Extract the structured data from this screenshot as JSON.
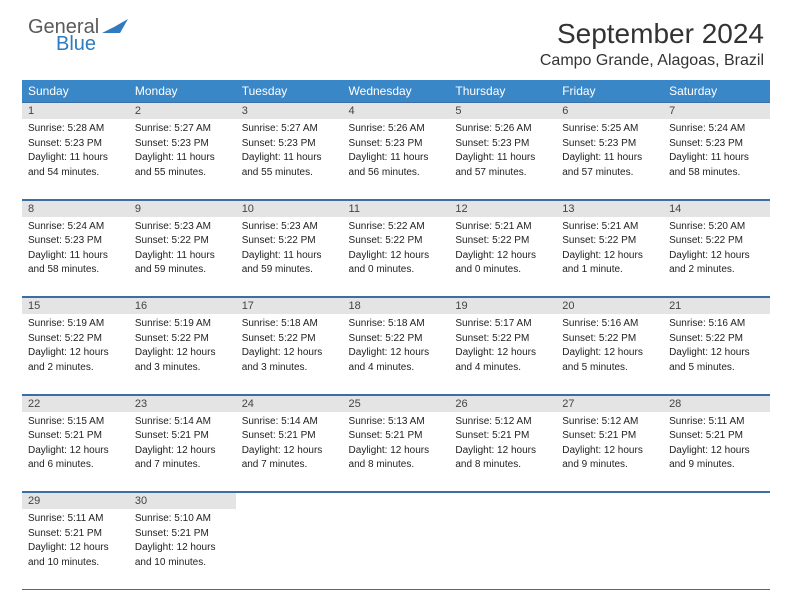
{
  "brand": {
    "general": "General",
    "blue": "Blue"
  },
  "title": "September 2024",
  "location": "Campo Grande, Alagoas, Brazil",
  "colors": {
    "header_bg": "#3a87c8",
    "header_text": "#ffffff",
    "daynum_bg": "#e4e4e4",
    "border": "#3a6ea5",
    "logo_blue": "#2f7bbf",
    "logo_gray": "#5a5a5a",
    "text": "#222222",
    "background": "#ffffff"
  },
  "typography": {
    "title_fontsize": 28,
    "location_fontsize": 16,
    "weekday_fontsize": 12,
    "daynum_fontsize": 11,
    "cell_fontsize": 10
  },
  "weekdays": [
    "Sunday",
    "Monday",
    "Tuesday",
    "Wednesday",
    "Thursday",
    "Friday",
    "Saturday"
  ],
  "days": [
    {
      "n": "1",
      "sunrise": "Sunrise: 5:28 AM",
      "sunset": "Sunset: 5:23 PM",
      "day1": "Daylight: 11 hours",
      "day2": "and 54 minutes."
    },
    {
      "n": "2",
      "sunrise": "Sunrise: 5:27 AM",
      "sunset": "Sunset: 5:23 PM",
      "day1": "Daylight: 11 hours",
      "day2": "and 55 minutes."
    },
    {
      "n": "3",
      "sunrise": "Sunrise: 5:27 AM",
      "sunset": "Sunset: 5:23 PM",
      "day1": "Daylight: 11 hours",
      "day2": "and 55 minutes."
    },
    {
      "n": "4",
      "sunrise": "Sunrise: 5:26 AM",
      "sunset": "Sunset: 5:23 PM",
      "day1": "Daylight: 11 hours",
      "day2": "and 56 minutes."
    },
    {
      "n": "5",
      "sunrise": "Sunrise: 5:26 AM",
      "sunset": "Sunset: 5:23 PM",
      "day1": "Daylight: 11 hours",
      "day2": "and 57 minutes."
    },
    {
      "n": "6",
      "sunrise": "Sunrise: 5:25 AM",
      "sunset": "Sunset: 5:23 PM",
      "day1": "Daylight: 11 hours",
      "day2": "and 57 minutes."
    },
    {
      "n": "7",
      "sunrise": "Sunrise: 5:24 AM",
      "sunset": "Sunset: 5:23 PM",
      "day1": "Daylight: 11 hours",
      "day2": "and 58 minutes."
    },
    {
      "n": "8",
      "sunrise": "Sunrise: 5:24 AM",
      "sunset": "Sunset: 5:23 PM",
      "day1": "Daylight: 11 hours",
      "day2": "and 58 minutes."
    },
    {
      "n": "9",
      "sunrise": "Sunrise: 5:23 AM",
      "sunset": "Sunset: 5:22 PM",
      "day1": "Daylight: 11 hours",
      "day2": "and 59 minutes."
    },
    {
      "n": "10",
      "sunrise": "Sunrise: 5:23 AM",
      "sunset": "Sunset: 5:22 PM",
      "day1": "Daylight: 11 hours",
      "day2": "and 59 minutes."
    },
    {
      "n": "11",
      "sunrise": "Sunrise: 5:22 AM",
      "sunset": "Sunset: 5:22 PM",
      "day1": "Daylight: 12 hours",
      "day2": "and 0 minutes."
    },
    {
      "n": "12",
      "sunrise": "Sunrise: 5:21 AM",
      "sunset": "Sunset: 5:22 PM",
      "day1": "Daylight: 12 hours",
      "day2": "and 0 minutes."
    },
    {
      "n": "13",
      "sunrise": "Sunrise: 5:21 AM",
      "sunset": "Sunset: 5:22 PM",
      "day1": "Daylight: 12 hours",
      "day2": "and 1 minute."
    },
    {
      "n": "14",
      "sunrise": "Sunrise: 5:20 AM",
      "sunset": "Sunset: 5:22 PM",
      "day1": "Daylight: 12 hours",
      "day2": "and 2 minutes."
    },
    {
      "n": "15",
      "sunrise": "Sunrise: 5:19 AM",
      "sunset": "Sunset: 5:22 PM",
      "day1": "Daylight: 12 hours",
      "day2": "and 2 minutes."
    },
    {
      "n": "16",
      "sunrise": "Sunrise: 5:19 AM",
      "sunset": "Sunset: 5:22 PM",
      "day1": "Daylight: 12 hours",
      "day2": "and 3 minutes."
    },
    {
      "n": "17",
      "sunrise": "Sunrise: 5:18 AM",
      "sunset": "Sunset: 5:22 PM",
      "day1": "Daylight: 12 hours",
      "day2": "and 3 minutes."
    },
    {
      "n": "18",
      "sunrise": "Sunrise: 5:18 AM",
      "sunset": "Sunset: 5:22 PM",
      "day1": "Daylight: 12 hours",
      "day2": "and 4 minutes."
    },
    {
      "n": "19",
      "sunrise": "Sunrise: 5:17 AM",
      "sunset": "Sunset: 5:22 PM",
      "day1": "Daylight: 12 hours",
      "day2": "and 4 minutes."
    },
    {
      "n": "20",
      "sunrise": "Sunrise: 5:16 AM",
      "sunset": "Sunset: 5:22 PM",
      "day1": "Daylight: 12 hours",
      "day2": "and 5 minutes."
    },
    {
      "n": "21",
      "sunrise": "Sunrise: 5:16 AM",
      "sunset": "Sunset: 5:22 PM",
      "day1": "Daylight: 12 hours",
      "day2": "and 5 minutes."
    },
    {
      "n": "22",
      "sunrise": "Sunrise: 5:15 AM",
      "sunset": "Sunset: 5:21 PM",
      "day1": "Daylight: 12 hours",
      "day2": "and 6 minutes."
    },
    {
      "n": "23",
      "sunrise": "Sunrise: 5:14 AM",
      "sunset": "Sunset: 5:21 PM",
      "day1": "Daylight: 12 hours",
      "day2": "and 7 minutes."
    },
    {
      "n": "24",
      "sunrise": "Sunrise: 5:14 AM",
      "sunset": "Sunset: 5:21 PM",
      "day1": "Daylight: 12 hours",
      "day2": "and 7 minutes."
    },
    {
      "n": "25",
      "sunrise": "Sunrise: 5:13 AM",
      "sunset": "Sunset: 5:21 PM",
      "day1": "Daylight: 12 hours",
      "day2": "and 8 minutes."
    },
    {
      "n": "26",
      "sunrise": "Sunrise: 5:12 AM",
      "sunset": "Sunset: 5:21 PM",
      "day1": "Daylight: 12 hours",
      "day2": "and 8 minutes."
    },
    {
      "n": "27",
      "sunrise": "Sunrise: 5:12 AM",
      "sunset": "Sunset: 5:21 PM",
      "day1": "Daylight: 12 hours",
      "day2": "and 9 minutes."
    },
    {
      "n": "28",
      "sunrise": "Sunrise: 5:11 AM",
      "sunset": "Sunset: 5:21 PM",
      "day1": "Daylight: 12 hours",
      "day2": "and 9 minutes."
    },
    {
      "n": "29",
      "sunrise": "Sunrise: 5:11 AM",
      "sunset": "Sunset: 5:21 PM",
      "day1": "Daylight: 12 hours",
      "day2": "and 10 minutes."
    },
    {
      "n": "30",
      "sunrise": "Sunrise: 5:10 AM",
      "sunset": "Sunset: 5:21 PM",
      "day1": "Daylight: 12 hours",
      "day2": "and 10 minutes."
    }
  ]
}
